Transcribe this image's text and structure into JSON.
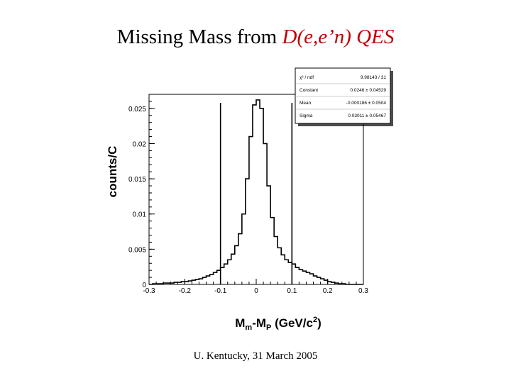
{
  "slide": {
    "title_plain": "Missing Mass from ",
    "title_em": "D(e,e’n) QES",
    "footer": "U. Kentucky, 31 March 2005"
  },
  "colors": {
    "title_accent": "#c00000",
    "histogram": "#000000"
  },
  "stats_box": [
    {
      "label": "χ² / ndf",
      "value": "9.98143 / 31"
    },
    {
      "label": "Constant",
      "value": "0.0246 ± 0.04529"
    },
    {
      "label": "Mean",
      "value": "-0.000186 ± 0.0504"
    },
    {
      "label": "Sigma",
      "value": "0.03011 ± 0.05467"
    }
  ],
  "chart_data": {
    "type": "line",
    "style": "step-histogram",
    "xlabel": "Mm-Mp (GeV/c2)",
    "ylabel": "counts/C",
    "xlim": [
      -0.3,
      0.3
    ],
    "ylim": [
      0,
      0.027
    ],
    "x_ticks": [
      "-0.3",
      "-0.2",
      "-0.1",
      "0",
      "0.1",
      "0.2",
      "0.3"
    ],
    "y_ticks": [
      "0",
      "0.005",
      "0.01",
      "0.015",
      "0.02",
      "0.025"
    ],
    "cut_lines_x": [
      -0.1,
      0.1
    ],
    "x": [
      -0.3,
      -0.29,
      -0.28,
      -0.27,
      -0.26,
      -0.25,
      -0.24,
      -0.23,
      -0.22,
      -0.21,
      -0.2,
      -0.19,
      -0.18,
      -0.17,
      -0.16,
      -0.15,
      -0.14,
      -0.13,
      -0.12,
      -0.11,
      -0.1,
      -0.09,
      -0.08,
      -0.07,
      -0.06,
      -0.05,
      -0.04,
      -0.03,
      -0.02,
      -0.01,
      0.0,
      0.01,
      0.02,
      0.03,
      0.04,
      0.05,
      0.06,
      0.07,
      0.08,
      0.09,
      0.1,
      0.11,
      0.12,
      0.13,
      0.14,
      0.15,
      0.16,
      0.17,
      0.18,
      0.19,
      0.2,
      0.21,
      0.22,
      0.23,
      0.24,
      0.25,
      0.26,
      0.27,
      0.28,
      0.29
    ],
    "y": [
      0.0,
      0.0001,
      0.0001,
      0.0001,
      0.0002,
      0.0002,
      0.0002,
      0.0003,
      0.0003,
      0.0004,
      0.0004,
      0.0005,
      0.0006,
      0.0007,
      0.0008,
      0.001,
      0.0012,
      0.0014,
      0.0017,
      0.002,
      0.0024,
      0.0029,
      0.0035,
      0.0043,
      0.0055,
      0.0072,
      0.01,
      0.015,
      0.021,
      0.0255,
      0.0262,
      0.025,
      0.02,
      0.014,
      0.0095,
      0.0068,
      0.0052,
      0.0042,
      0.0035,
      0.0031,
      0.0029,
      0.0024,
      0.0021,
      0.0019,
      0.0017,
      0.0015,
      0.0012,
      0.001,
      0.0008,
      0.0006,
      0.0004,
      0.0003,
      0.0002,
      0.0001,
      0.0001,
      0.0,
      0.0,
      0.0,
      0.0,
      0.0
    ]
  }
}
